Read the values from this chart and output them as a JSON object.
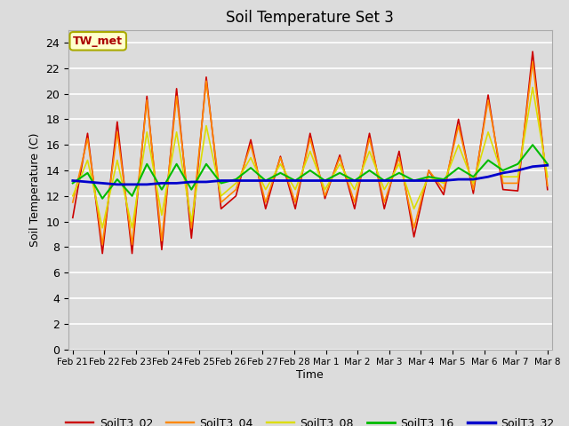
{
  "title": "Soil Temperature Set 3",
  "xlabel": "Time",
  "ylabel": "Soil Temperature (C)",
  "ylim": [
    0,
    25
  ],
  "yticks": [
    0,
    2,
    4,
    6,
    8,
    10,
    12,
    14,
    16,
    18,
    20,
    22,
    24
  ],
  "plot_bg": "#dcdcdc",
  "fig_bg": "#dcdcdc",
  "grid_color": "#ffffff",
  "annotation_text": "TW_met",
  "annotation_color": "#aa0000",
  "annotation_bg": "#ffffcc",
  "annotation_edge": "#aaaa00",
  "series_colors": {
    "SoilT3_02": "#cc0000",
    "SoilT3_04": "#ff8800",
    "SoilT3_08": "#dddd00",
    "SoilT3_16": "#00bb00",
    "SoilT3_32": "#0000cc"
  },
  "x_labels": [
    "Feb 21",
    "Feb 22",
    "Feb 23",
    "Feb 24",
    "Feb 25",
    "Feb 26",
    "Feb 27",
    "Feb 28",
    "Mar 1",
    "Mar 2",
    "Mar 3",
    "Mar 4",
    "Mar 5",
    "Mar 6",
    "Mar 7",
    "Mar 8"
  ],
  "SoilT3_02": [
    10.3,
    16.9,
    7.5,
    17.8,
    7.5,
    19.8,
    7.8,
    20.4,
    8.7,
    21.3,
    11.0,
    12.0,
    16.4,
    11.0,
    15.1,
    11.0,
    16.9,
    11.8,
    15.2,
    11.0,
    16.9,
    11.0,
    15.5,
    8.8,
    14.0,
    12.1,
    18.0,
    12.2,
    19.9,
    12.5,
    12.4,
    23.3,
    12.5
  ],
  "SoilT3_04": [
    11.5,
    16.5,
    8.2,
    17.0,
    8.2,
    19.5,
    8.5,
    19.8,
    9.5,
    21.0,
    11.5,
    12.5,
    16.0,
    11.5,
    15.0,
    11.5,
    16.5,
    12.0,
    15.0,
    11.5,
    16.5,
    11.5,
    15.0,
    9.5,
    14.0,
    12.5,
    17.5,
    12.5,
    19.5,
    13.0,
    13.0,
    22.5,
    12.8
  ],
  "SoilT3_08": [
    12.0,
    14.8,
    9.5,
    14.8,
    9.5,
    17.0,
    10.5,
    17.0,
    10.0,
    17.5,
    12.0,
    13.0,
    15.0,
    12.5,
    14.5,
    12.5,
    15.5,
    12.5,
    14.5,
    12.5,
    15.5,
    12.5,
    14.5,
    11.0,
    13.5,
    13.0,
    16.0,
    13.0,
    17.0,
    13.5,
    13.5,
    20.5,
    13.5
  ],
  "SoilT3_16": [
    13.0,
    13.8,
    11.8,
    13.3,
    12.0,
    14.5,
    12.5,
    14.5,
    12.5,
    14.5,
    13.0,
    13.3,
    14.2,
    13.2,
    13.8,
    13.2,
    14.0,
    13.2,
    13.8,
    13.2,
    14.0,
    13.2,
    13.8,
    13.2,
    13.5,
    13.3,
    14.2,
    13.5,
    14.8,
    14.0,
    14.5,
    16.0,
    14.5
  ],
  "SoilT3_32": [
    13.2,
    13.1,
    13.0,
    12.9,
    12.9,
    12.9,
    13.0,
    13.0,
    13.1,
    13.1,
    13.2,
    13.2,
    13.2,
    13.2,
    13.2,
    13.2,
    13.2,
    13.2,
    13.2,
    13.2,
    13.2,
    13.2,
    13.2,
    13.2,
    13.2,
    13.2,
    13.3,
    13.3,
    13.5,
    13.8,
    14.0,
    14.3,
    14.4
  ]
}
